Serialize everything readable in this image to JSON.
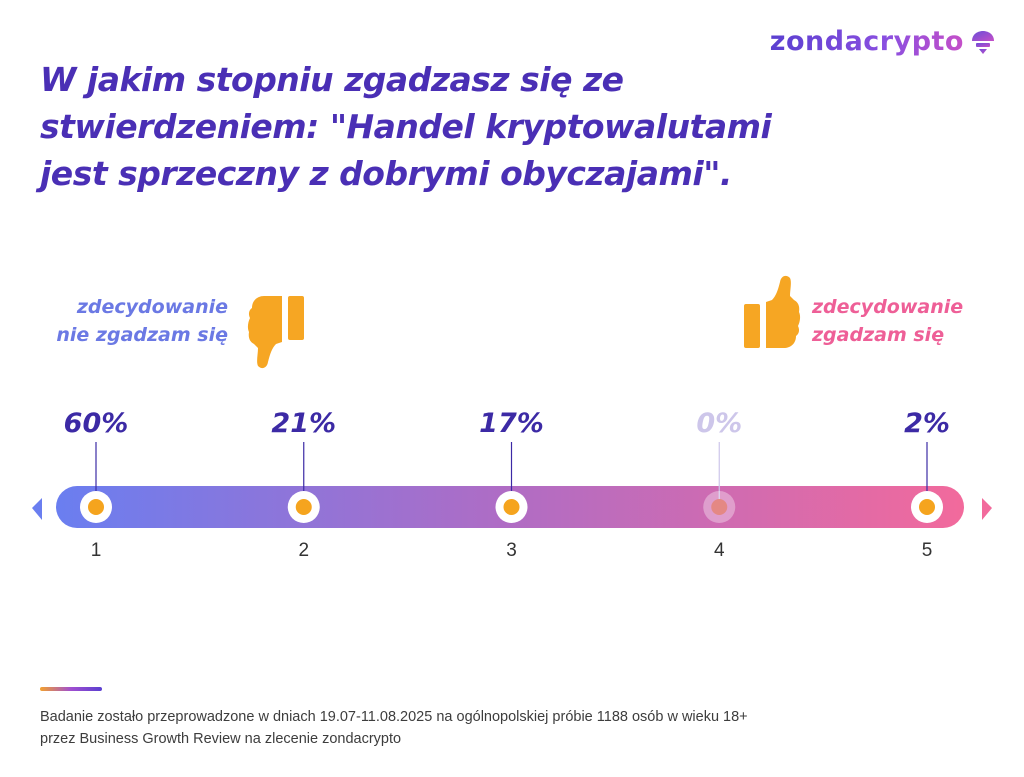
{
  "brand": {
    "logo_text": "zondacrypto",
    "icon": "zonda-mushroom-icon"
  },
  "title": "W jakim stopniu zgadzasz się ze\nstwierdzeniem: \"Handel kryptowalutami\njest sprzeczny z dobrymi obyczajami\".",
  "scale_labels": {
    "left": "zdecydowanie\nnie zgadzam się",
    "right": "zdecydowanie\nzgadzam się",
    "left_icon": "thumbs-down-icon",
    "right_icon": "thumbs-up-icon"
  },
  "chart_data": {
    "type": "bar",
    "categories": [
      "1",
      "2",
      "3",
      "4",
      "5"
    ],
    "values": [
      60,
      21,
      17,
      0,
      2
    ],
    "value_labels": [
      "60%",
      "21%",
      "17%",
      "0%",
      "2%"
    ],
    "xlabel": "",
    "ylabel": "",
    "grid": false,
    "legend": "none"
  },
  "colors": {
    "title": "#4a2fb5",
    "scale_start": "#6a7ef0",
    "scale_mid": "#b06cc4",
    "scale_end": "#f26a9c",
    "marker": "#f5a41e",
    "value_text": "#3c2aa5",
    "value_text_muted": "#cdc6ea"
  },
  "footnote": "Badanie zostało przeprowadzone w dniach 19.07-11.08.2025 na ogólnopolskiej próbie 1188 osób w wieku 18+\nprzez Business Growth Review na zlecenie zondacrypto"
}
